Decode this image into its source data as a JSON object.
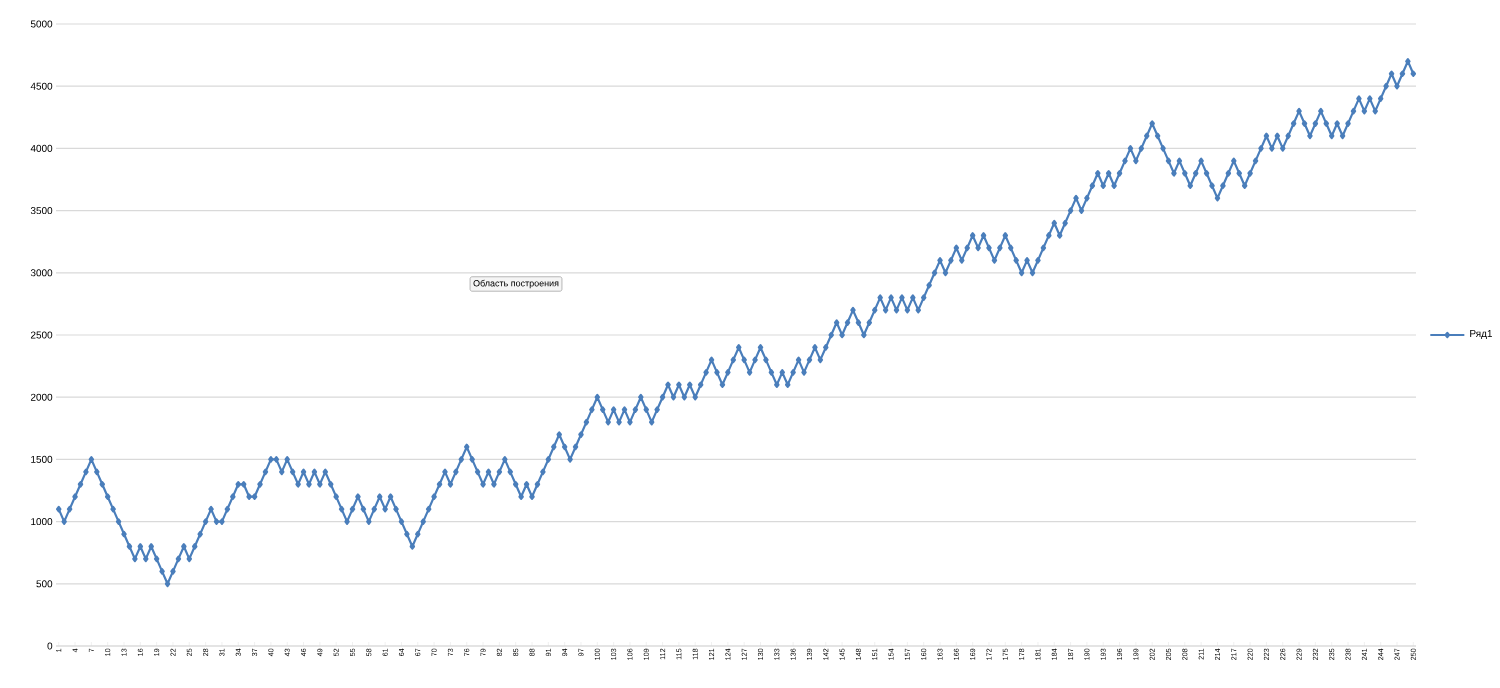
{
  "chart_data": {
    "type": "line",
    "categories": [
      "1",
      null,
      null,
      "4",
      null,
      null,
      "7",
      null,
      null,
      "10",
      null,
      null,
      "13",
      null,
      null,
      "16",
      null,
      null,
      "19",
      null,
      null,
      "22",
      null,
      null,
      "25",
      null,
      null,
      "28",
      null,
      null,
      "31",
      null,
      null,
      "34",
      null,
      null,
      "37",
      null,
      null,
      "40",
      null,
      null,
      "43",
      null,
      null,
      "46",
      null,
      null,
      "49",
      null,
      null,
      "52",
      null,
      null,
      "55",
      null,
      null,
      "58",
      null,
      null,
      "61",
      null,
      null,
      "64",
      null,
      null,
      "67",
      null,
      null,
      "70",
      null,
      null,
      "73",
      null,
      null,
      "76",
      null,
      null,
      "79",
      null,
      null,
      "82",
      null,
      null,
      "85",
      null,
      null,
      "88",
      null,
      null,
      "91",
      null,
      null,
      "94",
      null,
      null,
      "97",
      null,
      null,
      "100",
      null,
      null,
      "103",
      null,
      null,
      "106",
      null,
      null,
      "109",
      null,
      null,
      "112",
      null,
      null,
      "115",
      null,
      null,
      "118",
      null,
      null,
      "121",
      null,
      null,
      "124",
      null,
      null,
      "127",
      null,
      null,
      "130",
      null,
      null,
      "133",
      null,
      null,
      "136",
      null,
      null,
      "139",
      null,
      null,
      "142",
      null,
      null,
      "145",
      null,
      null,
      "148",
      null,
      null,
      "151",
      null,
      null,
      "154",
      null,
      null,
      "157",
      null,
      null,
      "160",
      null,
      null,
      "163",
      null,
      null,
      "166",
      null,
      null,
      "169",
      null,
      null,
      "172",
      null,
      null,
      "175",
      null,
      null,
      "178",
      null,
      null,
      "181",
      null,
      null,
      "184",
      null,
      null,
      "187",
      null,
      null,
      "190",
      null,
      null,
      "193",
      null,
      null,
      "196",
      null,
      null,
      "199",
      null,
      null,
      "202",
      null,
      null,
      "205",
      null,
      null,
      "208",
      null,
      null,
      "211",
      null,
      null,
      "214",
      null,
      null,
      "217",
      null,
      null,
      "220",
      null,
      null,
      "223",
      null,
      null,
      "226",
      null,
      null,
      "229",
      null,
      null,
      "232",
      null,
      null,
      "235",
      null,
      null,
      "238",
      null,
      null,
      "241",
      null,
      null,
      "244",
      null,
      null,
      "247",
      null,
      null,
      "250"
    ],
    "series": [
      {
        "name": "Ряд1",
        "color": "#4a7ebb",
        "values": [
          1100,
          1000,
          1100,
          1200,
          1300,
          1400,
          1500,
          1400,
          1300,
          1200,
          1100,
          1000,
          900,
          800,
          700,
          800,
          700,
          800,
          700,
          600,
          500,
          600,
          700,
          800,
          700,
          800,
          900,
          1000,
          1100,
          1000,
          1000,
          1100,
          1200,
          1300,
          1300,
          1200,
          1200,
          1300,
          1400,
          1500,
          1500,
          1400,
          1500,
          1400,
          1300,
          1400,
          1300,
          1400,
          1300,
          1400,
          1300,
          1200,
          1100,
          1000,
          1100,
          1200,
          1100,
          1000,
          1100,
          1200,
          1100,
          1200,
          1100,
          1000,
          900,
          800,
          900,
          1000,
          1100,
          1200,
          1300,
          1400,
          1300,
          1400,
          1500,
          1600,
          1500,
          1400,
          1300,
          1400,
          1300,
          1400,
          1500,
          1400,
          1300,
          1200,
          1300,
          1200,
          1300,
          1400,
          1500,
          1600,
          1700,
          1600,
          1500,
          1600,
          1700,
          1800,
          1900,
          2000,
          1900,
          1800,
          1900,
          1800,
          1900,
          1800,
          1900,
          2000,
          1900,
          1800,
          1900,
          2000,
          2100,
          2000,
          2100,
          2000,
          2100,
          2000,
          2100,
          2200,
          2300,
          2200,
          2100,
          2200,
          2300,
          2400,
          2300,
          2200,
          2300,
          2400,
          2300,
          2200,
          2100,
          2200,
          2100,
          2200,
          2300,
          2200,
          2300,
          2400,
          2300,
          2400,
          2500,
          2600,
          2500,
          2600,
          2700,
          2600,
          2500,
          2600,
          2700,
          2800,
          2700,
          2800,
          2700,
          2800,
          2700,
          2800,
          2700,
          2800,
          2900,
          3000,
          3100,
          3000,
          3100,
          3200,
          3100,
          3200,
          3300,
          3200,
          3300,
          3200,
          3100,
          3200,
          3300,
          3200,
          3100,
          3000,
          3100,
          3000,
          3100,
          3200,
          3300,
          3400,
          3300,
          3400,
          3500,
          3600,
          3500,
          3600,
          3700,
          3800,
          3700,
          3800,
          3700,
          3800,
          3900,
          4000,
          3900,
          4000,
          4100,
          4200,
          4100,
          4000,
          3900,
          3800,
          3900,
          3800,
          3700,
          3800,
          3900,
          3800,
          3700,
          3600,
          3700,
          3800,
          3900,
          3800,
          3700,
          3800,
          3900,
          4000,
          4100,
          4000,
          4100,
          4000,
          4100,
          4200,
          4300,
          4200,
          4100,
          4200,
          4300,
          4200,
          4100,
          4200,
          4100,
          4200,
          4300,
          4400,
          4300,
          4400,
          4300,
          4400,
          4500,
          4600,
          4500,
          4600,
          4700,
          4600
        ]
      }
    ],
    "ylim": [
      0,
      5000
    ],
    "yticks": [
      0,
      500,
      1000,
      1500,
      2000,
      2500,
      3000,
      3500,
      4000,
      4500,
      5000
    ],
    "grid": "y",
    "legend": "right",
    "marker": "diamond",
    "line_style": "solid",
    "annotations": [
      "Область построения"
    ]
  }
}
